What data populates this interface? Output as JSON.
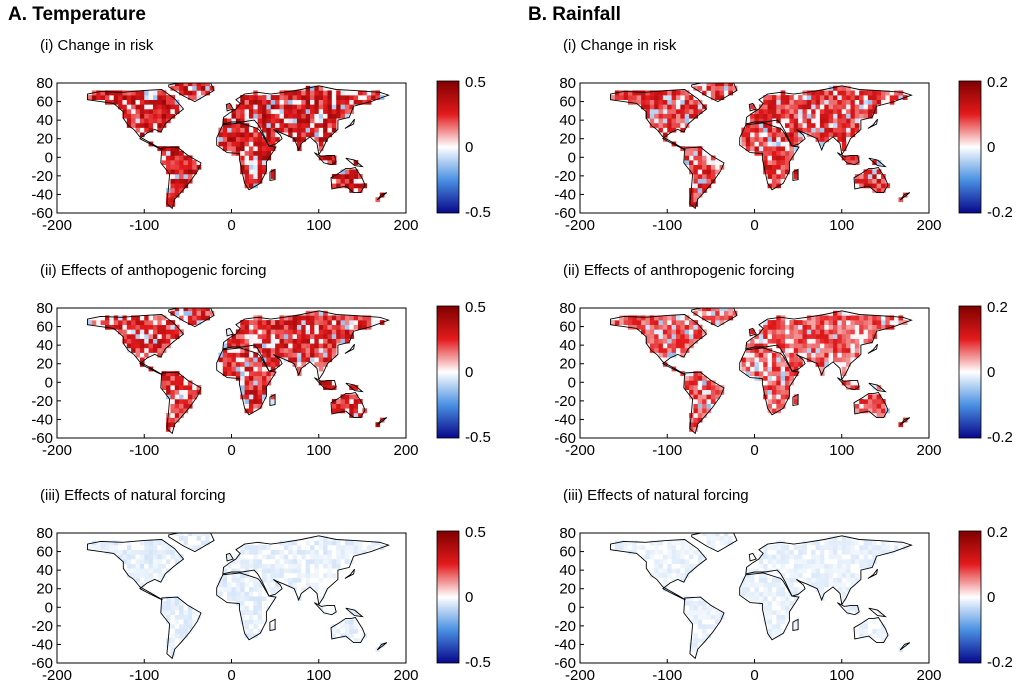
{
  "columns": [
    {
      "title": "A. Temperature",
      "variable": "temperature"
    },
    {
      "title": "B. Rainfall",
      "variable": "rainfall"
    }
  ],
  "colors": {
    "positive_max": "#7f0000",
    "positive_mid": "#e31a1c",
    "neutral": "#ffffff",
    "negative_mid": "#4a90e2",
    "negative_max": "#08088a",
    "land_outline": "#000000"
  },
  "chart_data": [
    {
      "type": "heatmap",
      "column": "A",
      "panel_title": "(i) Change in risk",
      "xlim": [
        -200,
        200
      ],
      "ylim": [
        -60,
        80
      ],
      "xticks": [
        -200,
        -100,
        0,
        100,
        200
      ],
      "yticks": [
        80,
        60,
        40,
        20,
        0,
        -20,
        -40,
        -60
      ],
      "colorbar": {
        "min": -0.5,
        "max": 0.5,
        "ticks": [
          "0.5",
          "0",
          "-0.5"
        ]
      },
      "dominant_sign": "positive",
      "intensity": 0.85
    },
    {
      "type": "heatmap",
      "column": "A",
      "panel_title": "(ii) Effects of anthopogenic forcing",
      "xlim": [
        -200,
        200
      ],
      "ylim": [
        -60,
        80
      ],
      "xticks": [
        -200,
        -100,
        0,
        100,
        200
      ],
      "yticks": [
        80,
        60,
        40,
        20,
        0,
        -20,
        -40,
        -60
      ],
      "colorbar": {
        "min": -0.5,
        "max": 0.5,
        "ticks": [
          "0.5",
          "0",
          "-0.5"
        ]
      },
      "dominant_sign": "positive",
      "intensity": 0.75
    },
    {
      "type": "heatmap",
      "column": "A",
      "panel_title": "(iii) Effects of natural forcing",
      "xlim": [
        -200,
        200
      ],
      "ylim": [
        -60,
        80
      ],
      "xticks": [
        -200,
        -100,
        0,
        100,
        200
      ],
      "yticks": [
        80,
        60,
        40,
        20,
        0,
        -20,
        -40,
        -60
      ],
      "colorbar": {
        "min": -0.5,
        "max": 0.5,
        "ticks": [
          "0.5",
          "0",
          "-0.5"
        ]
      },
      "dominant_sign": "negative",
      "intensity": 0.12
    },
    {
      "type": "heatmap",
      "column": "B",
      "panel_title": "(i) Change in risk",
      "xlim": [
        -200,
        200
      ],
      "ylim": [
        -60,
        80
      ],
      "xticks": [
        -200,
        -100,
        0,
        100,
        200
      ],
      "yticks": [
        80,
        60,
        40,
        20,
        0,
        -20,
        -40,
        -60
      ],
      "colorbar": {
        "min": -0.2,
        "max": 0.2,
        "ticks": [
          "0.2",
          "0",
          "-0.2"
        ]
      },
      "dominant_sign": "positive",
      "intensity": 0.7
    },
    {
      "type": "heatmap",
      "column": "B",
      "panel_title": "(ii) Effects of anthropogenic forcing",
      "xlim": [
        -200,
        200
      ],
      "ylim": [
        -60,
        80
      ],
      "xticks": [
        -200,
        -100,
        0,
        100,
        200
      ],
      "yticks": [
        80,
        60,
        40,
        20,
        0,
        -20,
        -40,
        -60
      ],
      "colorbar": {
        "min": -0.2,
        "max": 0.2,
        "ticks": [
          "0.2",
          "0",
          "-0.2"
        ]
      },
      "dominant_sign": "positive",
      "intensity": 0.55
    },
    {
      "type": "heatmap",
      "column": "B",
      "panel_title": "(iii) Effects of natural forcing",
      "xlim": [
        -200,
        200
      ],
      "ylim": [
        -60,
        80
      ],
      "xticks": [
        -200,
        -100,
        0,
        100,
        200
      ],
      "yticks": [
        80,
        60,
        40,
        20,
        0,
        -20,
        -40,
        -60
      ],
      "colorbar": {
        "min": -0.2,
        "max": 0.2,
        "ticks": [
          "0.2",
          "0",
          "-0.2"
        ]
      },
      "dominant_sign": "negative",
      "intensity": 0.1
    }
  ]
}
